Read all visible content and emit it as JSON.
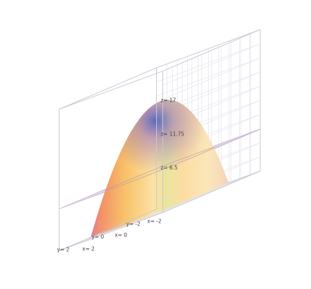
{
  "chart_data": {
    "type": "surface3d",
    "surface": {
      "kind": "paraboloid",
      "equation_form": "z = c - k(x^2 + y^2)",
      "apex": {
        "x": 0,
        "y": 0,
        "z": 17
      },
      "rim_z": 0.2,
      "x_range": [
        -2.9,
        2.9
      ],
      "y_range": [
        -2.9,
        2.9
      ]
    },
    "plane": {
      "z": 6.5,
      "color": "#c9b2d1",
      "opacity": 0.5
    },
    "bounding_box": {
      "x": [
        -3,
        3
      ],
      "y": [
        -3,
        3
      ],
      "z": [
        0,
        22
      ]
    },
    "x_ticks": [
      {
        "value": -2,
        "label": "x= -2"
      },
      {
        "value": 0,
        "label": "x= 0"
      },
      {
        "value": 2,
        "label": "x= 2"
      }
    ],
    "y_ticks": [
      {
        "value": -2,
        "label": "y= -2"
      },
      {
        "value": 0,
        "label": "y= 0"
      },
      {
        "value": 2,
        "label": "y= 2"
      }
    ],
    "z_ticks": [
      {
        "value": 6.5,
        "label": "z= 6.5"
      },
      {
        "value": 11.75,
        "label": "z= 11.75"
      },
      {
        "value": 17,
        "label": "z= 17"
      }
    ],
    "grid": true,
    "colors": {
      "box_edge": "#c8c8d4",
      "grid_line": "#e6e6ee",
      "surface_light": "#fdebb0",
      "surface_mid": "#f7c86a",
      "surface_orange": "#f0a64a",
      "surface_purple": "#b65ac8",
      "surface_blue": "#4a5cc8"
    }
  }
}
